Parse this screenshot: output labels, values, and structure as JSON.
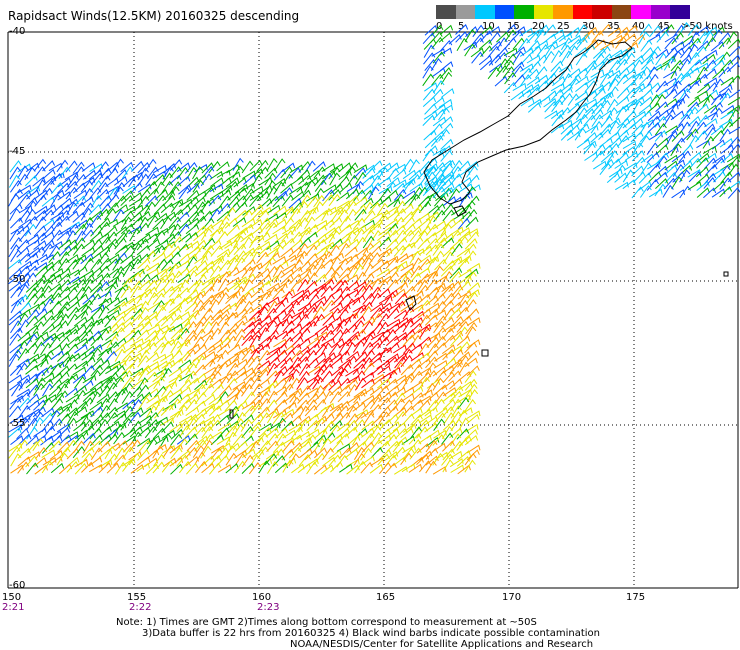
{
  "title": "Rapidsact Winds(12.5KM) 20160325 descending",
  "legend": {
    "colors": [
      "#4d4d4d",
      "#9a9a9a",
      "#00c8ff",
      "#0050ff",
      "#00b000",
      "#e6e600",
      "#ff9900",
      "#ff0000",
      "#cc0000",
      "#8b4513",
      "#ff00ff",
      "#9900cc",
      "#330099"
    ],
    "labels": [
      "0",
      "5",
      "10",
      "15",
      "20",
      "25",
      "30",
      "35",
      "40",
      "45",
      ">50 knots"
    ]
  },
  "axes": {
    "lat_labels": [
      "-40",
      "-45",
      "-50",
      "-55",
      "-60"
    ],
    "lon_labels": [
      "150",
      "155",
      "160",
      "165",
      "170",
      "175"
    ]
  },
  "times": [
    "2:21",
    "2:22",
    "2:23"
  ],
  "notes": [
    "Note: 1) Times are GMT 2)Times along bottom correspond to measurement at ~50S",
    "3)Data buffer is 22 hrs from 20160325 4) Black wind barbs indicate possible contamination",
    "NOAA/NESDIS/Center for Satellite Applications and Research"
  ]
}
